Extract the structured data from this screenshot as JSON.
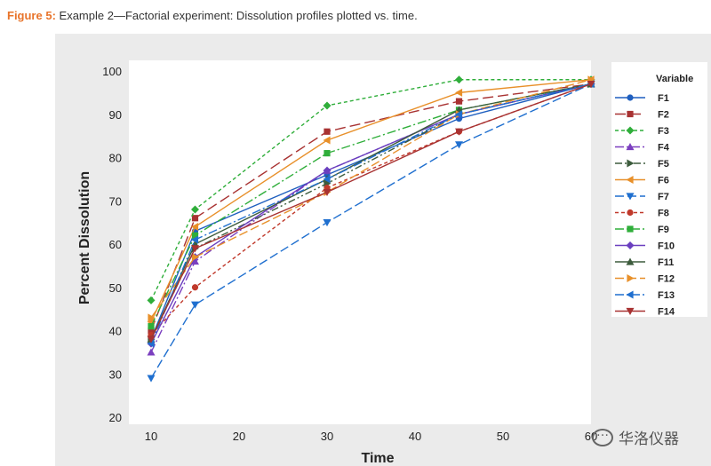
{
  "caption": {
    "figure": "Figure 5:",
    "text": " Example 2—Factorial experiment: Dissolution profiles plotted vs. time."
  },
  "watermark": "华洛仪器",
  "chart_data": {
    "type": "line",
    "xlabel": "Time",
    "ylabel": "Percent Dissolution",
    "xlim": [
      10,
      60
    ],
    "ylim": [
      20,
      100
    ],
    "xticks": [
      10,
      20,
      30,
      40,
      50,
      60
    ],
    "yticks": [
      20,
      30,
      40,
      50,
      60,
      70,
      80,
      90,
      100
    ],
    "x": [
      10,
      15,
      30,
      45,
      60
    ],
    "grid": false,
    "legend_title": "Variable",
    "legend_position": "right",
    "series": [
      {
        "name": "F1",
        "color": "#1f5fbf",
        "marker": "circle",
        "dash": "none",
        "values": [
          38,
          63,
          76,
          89,
          97
        ]
      },
      {
        "name": "F2",
        "color": "#a83232",
        "marker": "square",
        "dash": "12,5",
        "values": [
          40,
          66,
          86,
          93,
          97
        ]
      },
      {
        "name": "F3",
        "color": "#2fae3a",
        "marker": "diamond",
        "dash": "4,3",
        "values": [
          47,
          68,
          92,
          98,
          98
        ]
      },
      {
        "name": "F4",
        "color": "#7b3fbf",
        "marker": "triangle",
        "dash": "10,3,2,3",
        "values": [
          35,
          56,
          77,
          90,
          97
        ]
      },
      {
        "name": "F5",
        "color": "#3d5c3d",
        "marker": "tri-right",
        "dash": "8,3,2,3,2,3",
        "values": [
          38,
          59,
          74,
          90,
          97
        ]
      },
      {
        "name": "F6",
        "color": "#e8902a",
        "marker": "tri-left",
        "dash": "none",
        "values": [
          42,
          64,
          84,
          95,
          98
        ]
      },
      {
        "name": "F7",
        "color": "#1f6fcf",
        "marker": "tri-down",
        "dash": "10,4",
        "values": [
          29,
          46,
          65,
          83,
          97
        ]
      },
      {
        "name": "F8",
        "color": "#c0392b",
        "marker": "circle",
        "dash": "4,3",
        "values": [
          39,
          50,
          73,
          86,
          97
        ]
      },
      {
        "name": "F9",
        "color": "#2fae3a",
        "marker": "square",
        "dash": "10,3,2,3",
        "values": [
          41,
          62,
          81,
          91,
          97
        ]
      },
      {
        "name": "F10",
        "color": "#6a3fbf",
        "marker": "diamond",
        "dash": "none",
        "values": [
          37,
          57,
          77,
          90,
          97
        ]
      },
      {
        "name": "F11",
        "color": "#3d5c3d",
        "marker": "triangle",
        "dash": "none",
        "values": [
          38,
          60,
          75,
          91,
          97
        ]
      },
      {
        "name": "F12",
        "color": "#e8902a",
        "marker": "tri-right",
        "dash": "10,4",
        "values": [
          43,
          57,
          72,
          90,
          98
        ]
      },
      {
        "name": "F13",
        "color": "#1f6fcf",
        "marker": "tri-left",
        "dash": "10,3,2,3",
        "values": [
          37,
          61,
          75,
          90,
          97
        ]
      },
      {
        "name": "F14",
        "color": "#a83232",
        "marker": "tri-down",
        "dash": "none",
        "values": [
          38,
          59,
          72,
          86,
          97
        ]
      }
    ]
  }
}
